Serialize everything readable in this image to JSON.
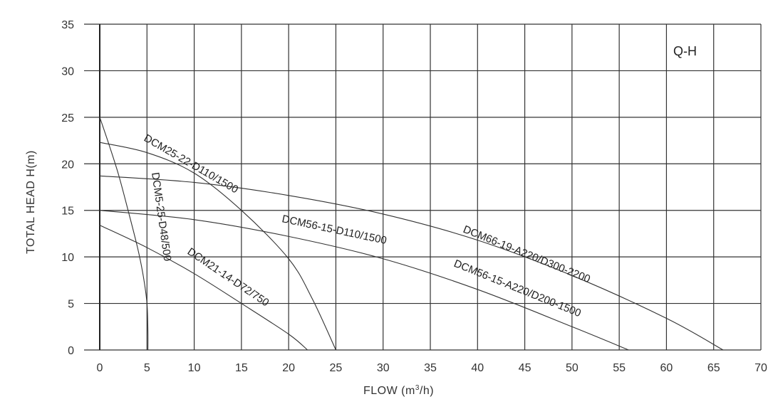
{
  "chart_data": {
    "type": "line",
    "title": "Q-H",
    "xlabel": "FLOW (m³/h)",
    "ylabel": "TOTAL HEAD  H(m)",
    "xlim": [
      0,
      70
    ],
    "ylim": [
      0,
      35
    ],
    "grid": true,
    "legend": "none (curves labeled inline)",
    "x_ticks": [
      0,
      5,
      10,
      15,
      20,
      25,
      30,
      35,
      40,
      45,
      50,
      55,
      60,
      65,
      70
    ],
    "y_ticks": [
      0,
      5,
      10,
      15,
      20,
      25,
      30,
      35
    ],
    "series": [
      {
        "name": "DCM5-25-D48/500",
        "x": [
          0,
          1,
          2,
          3,
          4,
          4.6,
          5,
          5.1,
          5.1
        ],
        "y": [
          25,
          22,
          18.8,
          15,
          11,
          8,
          5,
          2,
          0
        ]
      },
      {
        "name": "DCM25-22-D110/1500",
        "x": [
          0,
          5,
          10,
          15,
          20,
          22.5,
          25
        ],
        "y": [
          22.3,
          21.2,
          19,
          15,
          9.8,
          5.5,
          0
        ]
      },
      {
        "name": "DCM21-14-D72/750",
        "x": [
          0,
          5,
          10,
          15,
          20,
          22
        ],
        "y": [
          13.4,
          11,
          8.2,
          5,
          1.7,
          0
        ]
      },
      {
        "name": "DCM56-15-D110/1500",
        "x": [
          0,
          10,
          20,
          30,
          40,
          50,
          56
        ],
        "y": [
          15,
          14,
          12.2,
          9.8,
          6.5,
          2.5,
          0
        ]
      },
      {
        "name": "DCM56-15-A220/D200-1500",
        "x": [
          0,
          10,
          20,
          30,
          40,
          50,
          56
        ],
        "y": [
          15,
          14,
          12.2,
          9.8,
          6.5,
          2.5,
          0
        ]
      },
      {
        "name": "DCM66-19-A220/D300-2200",
        "x": [
          0,
          10,
          20,
          30,
          40,
          50,
          60,
          66
        ],
        "y": [
          18.7,
          18,
          16.6,
          14.6,
          11.8,
          8,
          3.4,
          0
        ]
      }
    ],
    "annotations": [
      "Q-H"
    ]
  },
  "labels": {
    "tag": "Q-H",
    "xlabel": "FLOW (m",
    "xlabel_sup": "3",
    "xlabel_tail": "/h)",
    "ylabel": "TOTAL HEAD  H(m)",
    "curve_labels": [
      "DCM5-25-D48/500",
      "DCM25-22-D110/1500",
      "DCM21-14-D72/750",
      "DCM56-15-D110/1500",
      "DCM66-19-A220/D300-2200",
      "DCM56-15-A220/D200-1500"
    ]
  }
}
